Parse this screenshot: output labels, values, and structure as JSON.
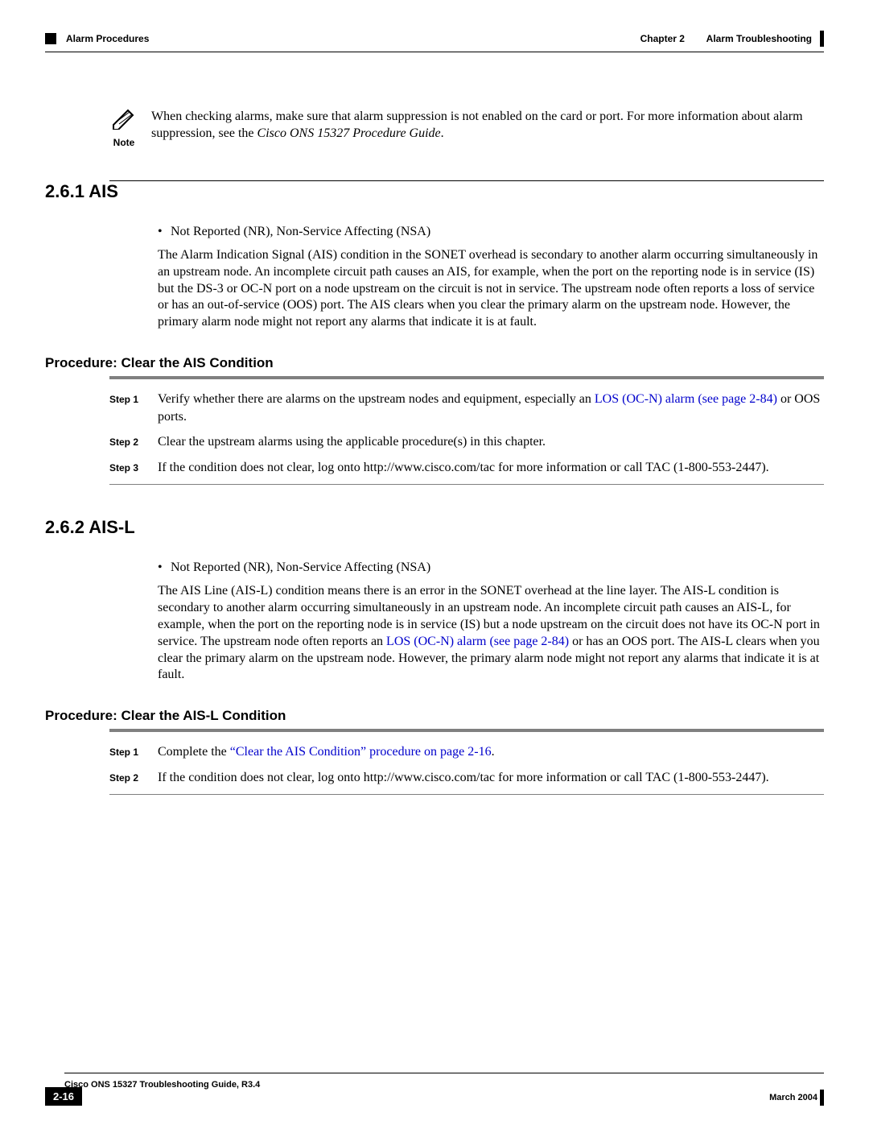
{
  "header": {
    "left": "Alarm Procedures",
    "right_chapter": "Chapter 2",
    "right_title": "Alarm Troubleshooting"
  },
  "note": {
    "label": "Note",
    "text_before_italic": "When checking alarms, make sure that alarm suppression is not enabled on the card or port. For more information about alarm suppression, see the ",
    "italic": "Cisco ONS 15327 Procedure Guide",
    "text_after_italic": "."
  },
  "sections": [
    {
      "heading": "2.6.1  AIS",
      "bullet": "Not Reported (NR), Non-Service Affecting (NSA)",
      "paragraph_parts": [
        {
          "t": "The Alarm Indication Signal (AIS) condition in the SONET overhead is secondary to another alarm occurring simultaneously in an upstream node. An incomplete circuit path causes an AIS, for example, when the port on the reporting node is in service (IS) but the DS-3 or OC-N port on a node upstream on the circuit is not in service. The upstream node often reports a loss of service or has an out-of-service (OOS) port. The AIS clears when you clear the primary alarm on the upstream node. However, the primary alarm node might not report any alarms that indicate it is at fault."
        }
      ],
      "procedure_heading": "Procedure: Clear the AIS Condition",
      "steps": [
        {
          "label": "Step 1",
          "parts": [
            {
              "t": "Verify whether there are alarms on the upstream nodes and equipment, especially an "
            },
            {
              "t": "LOS (OC-N) alarm (see page 2-84)",
              "link": true
            },
            {
              "t": " or OOS ports."
            }
          ]
        },
        {
          "label": "Step 2",
          "parts": [
            {
              "t": "Clear the upstream alarms using the applicable procedure(s) in this chapter."
            }
          ]
        },
        {
          "label": "Step 3",
          "parts": [
            {
              "t": "If the condition does not clear, log onto http://www.cisco.com/tac for more information or call TAC (1-800-553-2447)."
            }
          ]
        }
      ]
    },
    {
      "heading": "2.6.2  AIS-L",
      "bullet": "Not Reported (NR), Non-Service Affecting (NSA)",
      "paragraph_parts": [
        {
          "t": "The AIS Line (AIS-L) condition means there is an error in the SONET overhead at the line layer. The AIS-L condition is secondary to another alarm occurring simultaneously in an upstream node. An incomplete circuit path causes an AIS-L, for example, when the port on the reporting node is in service (IS) but a node upstream on the circuit does not have its OC-N port in service. The upstream node often reports an "
        },
        {
          "t": "LOS (OC-N) alarm (see page 2-84)",
          "link": true
        },
        {
          "t": " or has an OOS port. The AIS-L clears when you clear the primary alarm on the upstream node. However, the primary alarm node might not report any alarms that indicate it is at fault."
        }
      ],
      "procedure_heading": "Procedure: Clear the AIS-L Condition",
      "steps": [
        {
          "label": "Step 1",
          "parts": [
            {
              "t": "Complete the "
            },
            {
              "t": "“Clear the AIS Condition” procedure on page 2-16",
              "link": true
            },
            {
              "t": "."
            }
          ]
        },
        {
          "label": "Step 2",
          "parts": [
            {
              "t": "If the condition does not clear, log onto http://www.cisco.com/tac for more information or call TAC (1-800-553-2447)."
            }
          ]
        }
      ]
    }
  ],
  "footer": {
    "title": "Cisco ONS 15327 Troubleshooting Guide, R3.4",
    "page": "2-16",
    "date": "March 2004"
  }
}
